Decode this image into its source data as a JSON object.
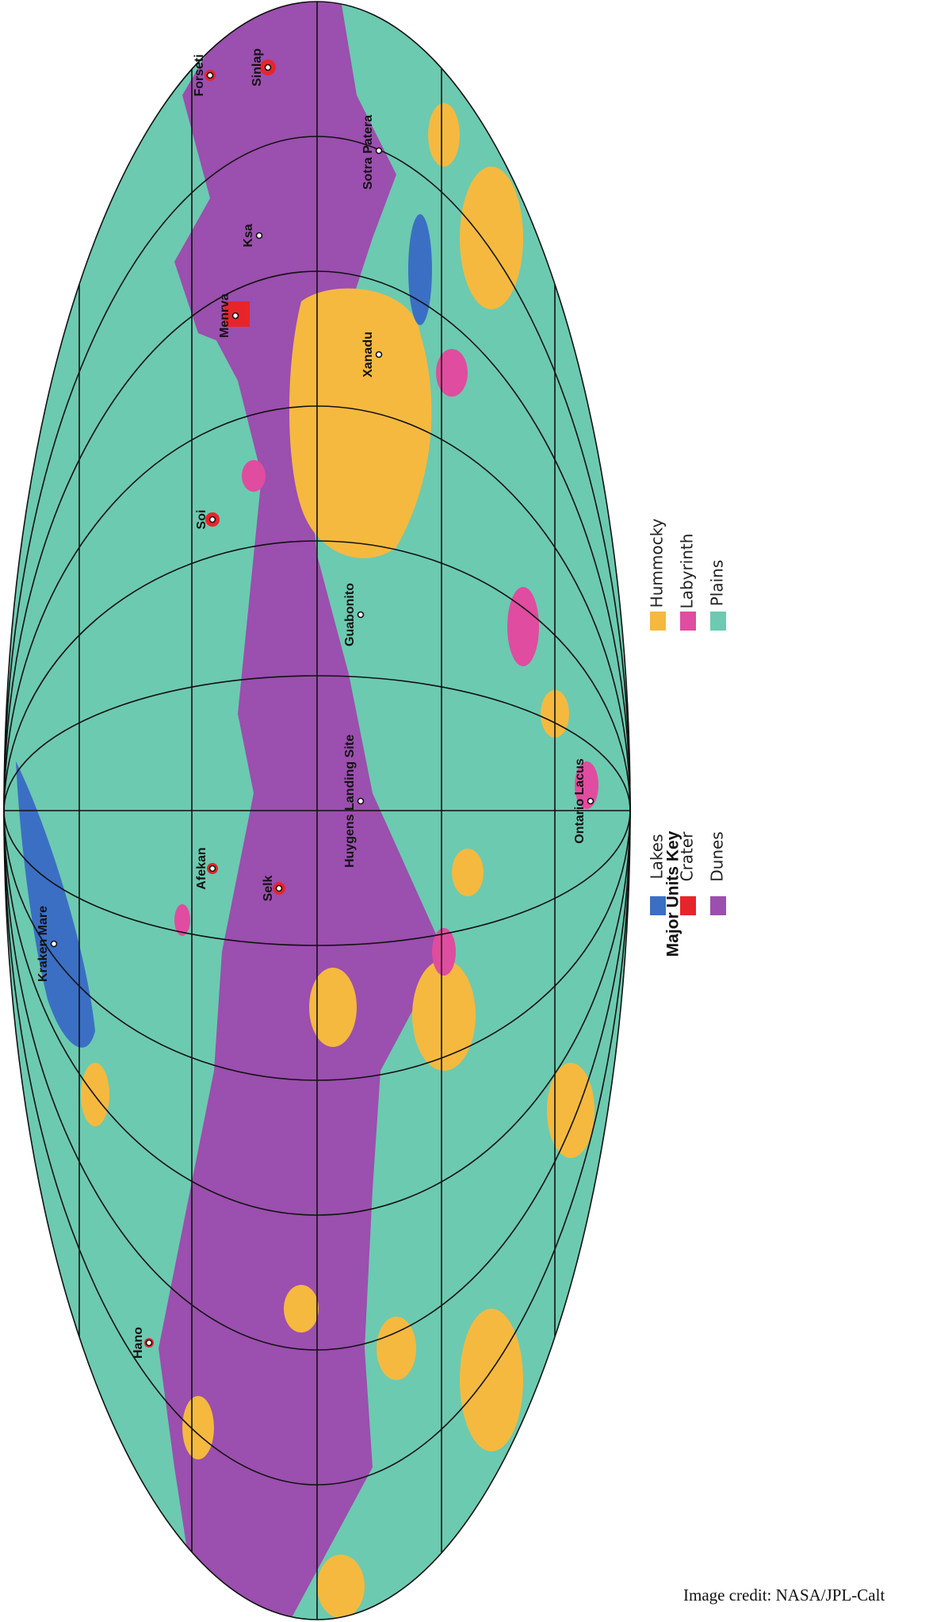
{
  "map": {
    "places": [
      {
        "label": "Forseti"
      },
      {
        "label": "Sinlap"
      },
      {
        "label": "Sotra Patera"
      },
      {
        "label": "Ksa"
      },
      {
        "label": "Menrva"
      },
      {
        "label": "Xanadu"
      },
      {
        "label": "Soi"
      },
      {
        "label": "Guabonito"
      },
      {
        "label": "Huygens Landing Site"
      },
      {
        "label": "Afekan"
      },
      {
        "label": "Selk"
      },
      {
        "label": "Ontario Lacus"
      },
      {
        "label": "Kraken Mare"
      },
      {
        "label": "Hano"
      }
    ]
  },
  "legend": {
    "title": "Major Units Key",
    "items": [
      {
        "label": "Lakes",
        "color": "#3b6fc4"
      },
      {
        "label": "Crater",
        "color": "#e8242b"
      },
      {
        "label": "Dunes",
        "color": "#9b4fae"
      },
      {
        "label": "Hummocky",
        "color": "#f5b93f"
      },
      {
        "label": "Labyrinth",
        "color": "#e04c9f"
      },
      {
        "label": "Plains",
        "color": "#6ccab0"
      }
    ]
  },
  "credit": "Image credit: NASA/JPL-Calt"
}
